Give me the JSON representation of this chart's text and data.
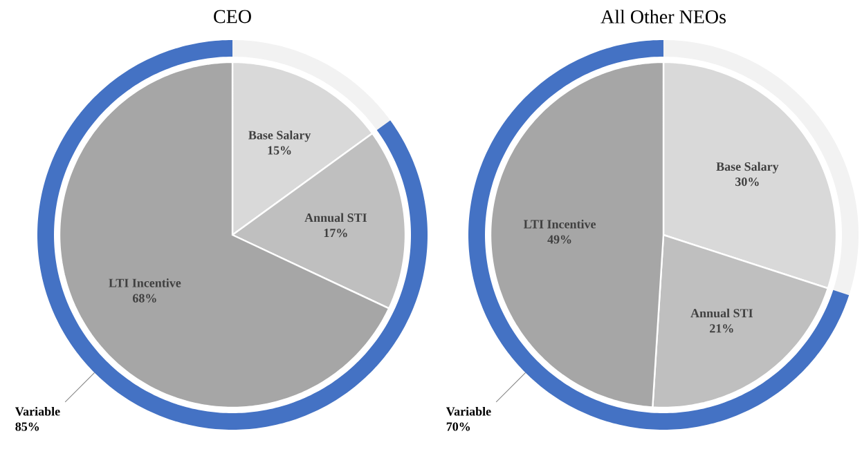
{
  "chart_data": [
    {
      "type": "pie",
      "title": "CEO",
      "categories": [
        "Base Salary",
        "Annual STI",
        "LTI Incentive"
      ],
      "values": [
        15,
        17,
        68
      ],
      "colors": [
        "#d9d9d9",
        "#bfbfbf",
        "#a6a6a6"
      ],
      "value_labels": [
        "15%",
        "17%",
        "68%"
      ]
    },
    {
      "type": "donut",
      "categories": [
        null,
        "Variable"
      ],
      "values": [
        15,
        85
      ],
      "colors": [
        "#f2f2f2",
        "#4472c4"
      ],
      "value_labels": [
        null,
        "85%"
      ]
    },
    {
      "type": "pie",
      "title": "All Other NEOs",
      "categories": [
        "Base Salary",
        "Annual STI",
        "LTI Incentive"
      ],
      "values": [
        30,
        21,
        49
      ],
      "colors": [
        "#d9d9d9",
        "#bfbfbf",
        "#a6a6a6"
      ],
      "value_labels": [
        "30%",
        "21%",
        "49%"
      ]
    },
    {
      "type": "donut",
      "categories": [
        null,
        "Variable"
      ],
      "values": [
        30,
        70
      ],
      "colors": [
        "#f2f2f2",
        "#4472c4"
      ],
      "value_labels": [
        null,
        "70%"
      ]
    }
  ]
}
